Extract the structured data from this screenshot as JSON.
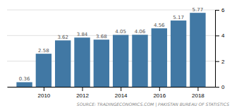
{
  "chart_data": {
    "type": "bar",
    "x": [
      2009,
      2010,
      2011,
      2012,
      2013,
      2014,
      2015,
      2016,
      2017,
      2018
    ],
    "values": [
      0.36,
      2.58,
      3.62,
      3.84,
      3.68,
      4.05,
      4.06,
      4.56,
      5.17,
      5.77
    ],
    "color": "#4178a4",
    "xlim": [
      2008.1,
      2018.9
    ],
    "xticks": [
      2010,
      2012,
      2014,
      2016,
      2018
    ],
    "ylim": [
      0,
      6
    ],
    "yticks": [
      0,
      2,
      4,
      6
    ],
    "grid": true,
    "data_labels": true,
    "annotations": [
      "SOURCE: TRADINGECONOMICS.COM | PAKISTAN BUREAU OF STATISTICS"
    ]
  }
}
